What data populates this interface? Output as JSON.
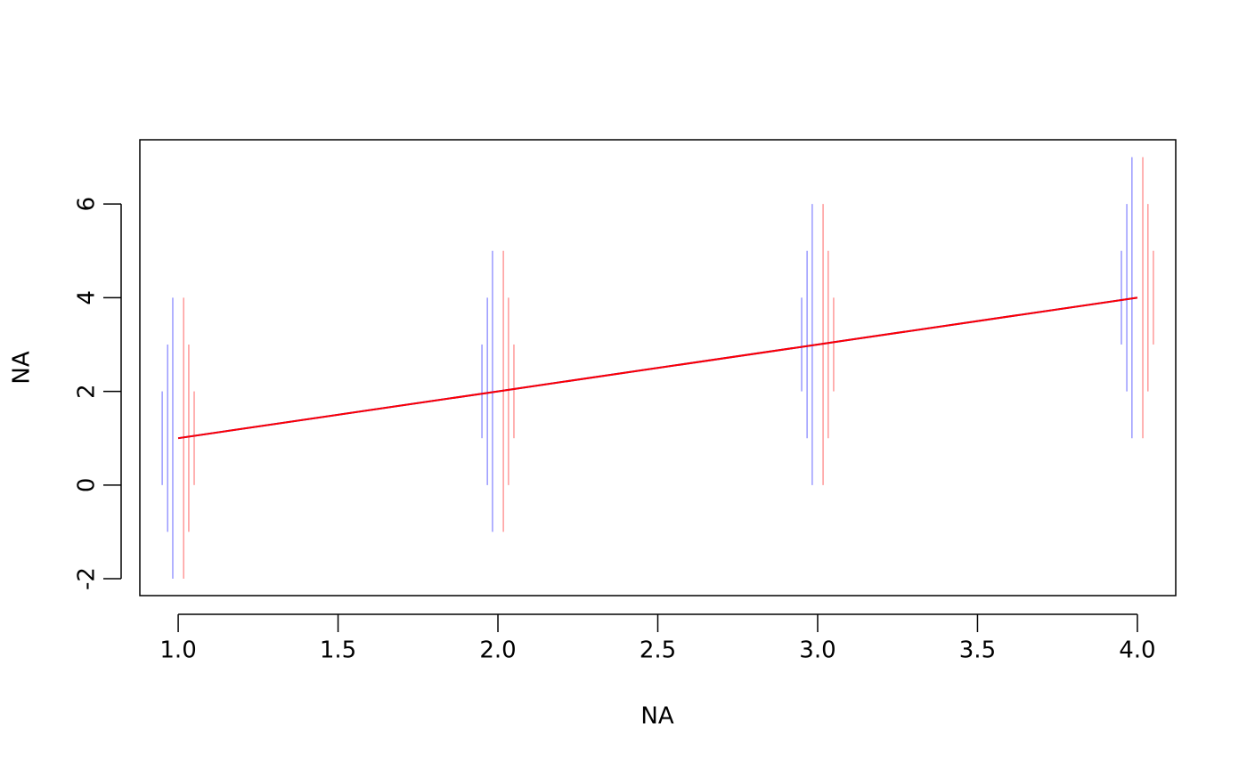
{
  "chart_data": {
    "type": "line",
    "xlabel": "NA",
    "ylabel": "NA",
    "x": [
      1,
      2,
      3,
      4
    ],
    "series": [
      {
        "color": "#0000ff",
        "values": [
          1,
          2,
          3,
          4
        ]
      },
      {
        "color": "#ff0000",
        "values": [
          1,
          2,
          3,
          4
        ]
      }
    ],
    "error_bars": [
      {
        "color": "#9999ff",
        "x": [
          0.95,
          1.95,
          2.95,
          3.95
        ],
        "low": [
          0,
          1,
          2,
          3
        ],
        "high": [
          2,
          3,
          4,
          5
        ]
      },
      {
        "color": "#9999ff",
        "x": [
          0.967,
          1.967,
          2.967,
          3.967
        ],
        "low": [
          -1,
          0,
          1,
          2
        ],
        "high": [
          3,
          4,
          5,
          6
        ]
      },
      {
        "color": "#9999ff",
        "x": [
          0.983,
          1.983,
          2.983,
          3.983
        ],
        "low": [
          -2,
          -1,
          0,
          1
        ],
        "high": [
          4,
          5,
          6,
          7
        ]
      },
      {
        "color": "#ff9999",
        "x": [
          1.017,
          2.017,
          3.017,
          4.017
        ],
        "low": [
          -2,
          -1,
          0,
          1
        ],
        "high": [
          4,
          5,
          6,
          7
        ]
      },
      {
        "color": "#ff9999",
        "x": [
          1.033,
          2.033,
          3.033,
          4.033
        ],
        "low": [
          -1,
          0,
          1,
          2
        ],
        "high": [
          3,
          4,
          5,
          6
        ]
      },
      {
        "color": "#ff9999",
        "x": [
          1.05,
          2.05,
          3.05,
          4.05
        ],
        "low": [
          0,
          1,
          2,
          3
        ],
        "high": [
          2,
          3,
          4,
          5
        ]
      }
    ],
    "xlim": [
      0.88,
      4.12
    ],
    "ylim": [
      -2.36,
      7.37
    ],
    "xticks": [
      {
        "value": 1,
        "label": "1.0"
      },
      {
        "value": 1.5,
        "label": "1.5"
      },
      {
        "value": 2,
        "label": "2.0"
      },
      {
        "value": 2.5,
        "label": "2.5"
      },
      {
        "value": 3,
        "label": "3.0"
      },
      {
        "value": 3.5,
        "label": "3.5"
      },
      {
        "value": 4,
        "label": "4.0"
      }
    ],
    "yticks": [
      -2,
      0,
      2,
      4,
      6
    ],
    "grid": false
  }
}
